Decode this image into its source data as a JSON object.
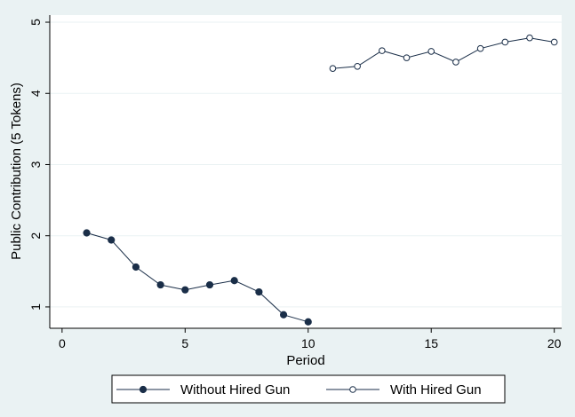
{
  "chart_data": {
    "type": "line",
    "xlabel": "Period",
    "ylabel": "Public Contribution (5 Tokens)",
    "xlim": [
      -0.5,
      20.3
    ],
    "ylim": [
      0.7,
      5.1
    ],
    "x_ticks": [
      0,
      5,
      10,
      15,
      20
    ],
    "y_ticks": [
      1,
      2,
      3,
      4,
      5
    ],
    "grid": "horizontal",
    "legend_position": "bottom",
    "series": [
      {
        "name": "Without Hired Gun",
        "marker": "filled-circle",
        "color": "#1a2e48",
        "x": [
          1,
          2,
          3,
          4,
          5,
          6,
          7,
          8,
          9,
          10
        ],
        "y": [
          2.04,
          1.94,
          1.56,
          1.31,
          1.24,
          1.31,
          1.37,
          1.21,
          0.89,
          0.79
        ]
      },
      {
        "name": "With Hired Gun",
        "marker": "hollow-circle",
        "color": "#1a2e48",
        "x": [
          11,
          12,
          13,
          14,
          15,
          16,
          17,
          18,
          19,
          20
        ],
        "y": [
          4.35,
          4.38,
          4.6,
          4.5,
          4.59,
          4.44,
          4.63,
          4.72,
          4.78,
          4.72
        ]
      }
    ]
  },
  "colors": {
    "background": "#eaf2f3",
    "plot_background": "#ffffff",
    "line": "#1a2e48"
  }
}
